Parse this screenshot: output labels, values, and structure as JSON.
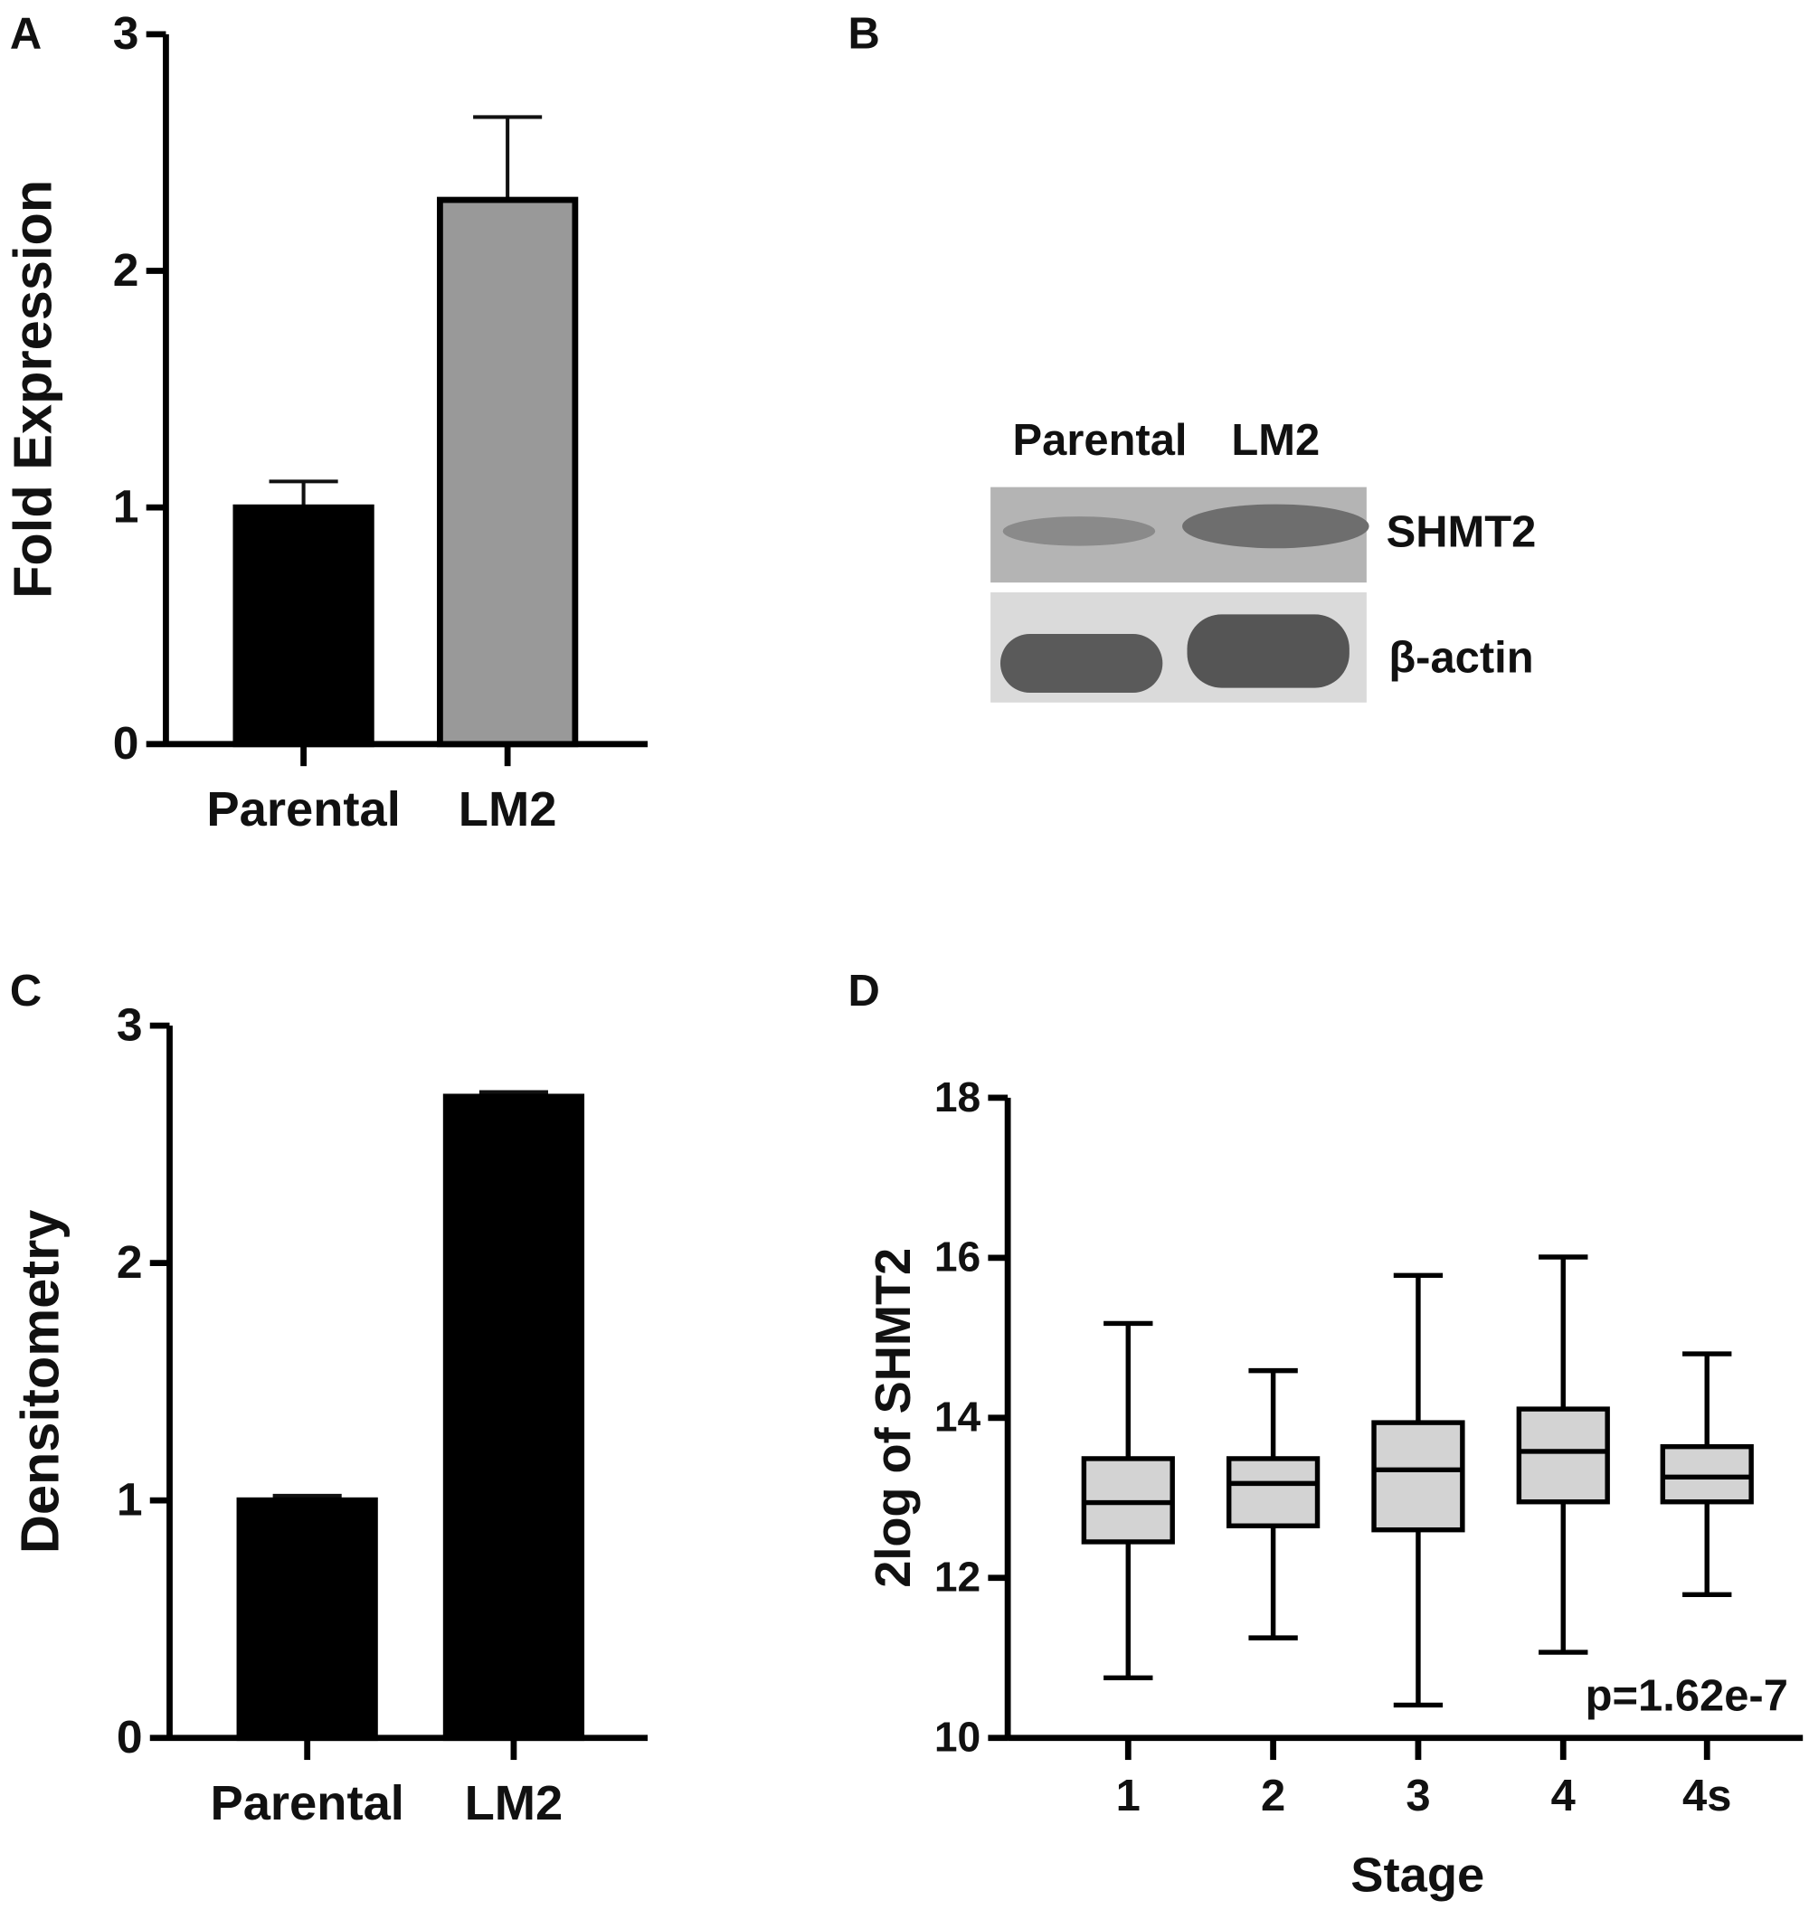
{
  "panel_labels": [
    "A",
    "B",
    "C",
    "D"
  ],
  "blot": {
    "lanes": [
      "Parental",
      "LM2"
    ],
    "bands": [
      "SHMT2",
      "β-actin"
    ]
  },
  "chart_data": [
    {
      "type": "bar",
      "ylabel": "Fold Expression",
      "categories": [
        "Parental",
        "LM2"
      ],
      "values": [
        1.0,
        2.3
      ],
      "errors": [
        0.11,
        0.35
      ],
      "colors": [
        "#000000",
        "#999999"
      ],
      "ylim": [
        0,
        3
      ],
      "yticks": [
        0,
        1,
        2,
        3
      ],
      "grid": false
    },
    {
      "type": "bar",
      "ylabel": "Densitometry",
      "categories": [
        "Parental",
        "LM2"
      ],
      "values": [
        1.0,
        2.7
      ],
      "errors": [
        0.02,
        0.02
      ],
      "colors": [
        "#000000",
        "#000000"
      ],
      "ylim": [
        0,
        3
      ],
      "yticks": [
        0,
        1,
        2,
        3
      ],
      "grid": false
    },
    {
      "type": "box",
      "xlabel": "Stage",
      "ylabel": "2log of SHMT2",
      "annotation": "p=1.62e-7",
      "categories": [
        "1",
        "2",
        "3",
        "4",
        "4s"
      ],
      "min": [
        10.75,
        11.25,
        10.41,
        11.07,
        11.79
      ],
      "q1": [
        12.45,
        12.65,
        12.6,
        12.95,
        12.95
      ],
      "median": [
        12.94,
        13.18,
        13.35,
        13.58,
        13.26
      ],
      "q3": [
        13.49,
        13.49,
        13.94,
        14.11,
        13.64
      ],
      "max": [
        15.18,
        14.59,
        15.78,
        16.01,
        14.8
      ],
      "color": "#d3d3d3",
      "ylim": [
        10,
        18
      ],
      "yticks": [
        10,
        12,
        14,
        16,
        18
      ],
      "grid": false
    }
  ]
}
